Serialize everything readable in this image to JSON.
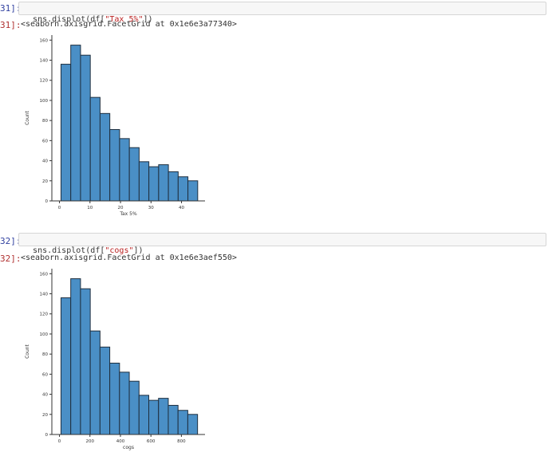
{
  "cells": [
    {
      "in_prompt": "31]:",
      "out_prompt": "31]:",
      "code_prefix": "sns.displot(df[",
      "code_str": "\"Tax 5%\"",
      "code_suffix": "])",
      "output": "<seaborn.axisgrid.FacetGrid at 0x1e6e3a77340>"
    },
    {
      "in_prompt": "32]:",
      "out_prompt": "32]:",
      "code_prefix": "sns.displot(df[",
      "code_str": "\"cogs\"",
      "code_suffix": "])",
      "output": "<seaborn.axisgrid.FacetGrid at 0x1e6e3aef550>"
    }
  ],
  "chart_data": [
    {
      "type": "bar",
      "xlabel": "Tax 5%",
      "ylabel": "Count",
      "bin_edges": [
        0.5,
        3.7,
        6.9,
        10.1,
        13.3,
        16.5,
        19.7,
        22.9,
        26.1,
        29.3,
        32.5,
        35.7,
        38.9,
        42.1,
        45.3
      ],
      "values": [
        136,
        155,
        145,
        103,
        87,
        71,
        62,
        53,
        39,
        34,
        36,
        29,
        24,
        20
      ],
      "xlim": [
        -2.5,
        47.7
      ],
      "ylim": [
        0,
        165
      ],
      "xticks": [
        0,
        10,
        20,
        30,
        40
      ],
      "yticks": [
        0,
        20,
        40,
        60,
        80,
        100,
        120,
        140,
        160
      ],
      "bar_color": "#4a8fc6",
      "edge_color": "#1f2f3f"
    },
    {
      "type": "bar",
      "xlabel": "cogs",
      "ylabel": "Count",
      "bin_edges": [
        10,
        74,
        138,
        202,
        266,
        330,
        394,
        458,
        522,
        586,
        650,
        714,
        778,
        842,
        906
      ],
      "values": [
        136,
        155,
        145,
        103,
        87,
        71,
        62,
        53,
        39,
        34,
        36,
        29,
        24,
        20
      ],
      "xlim": [
        -50,
        955
      ],
      "ylim": [
        0,
        165
      ],
      "xticks": [
        0,
        200,
        400,
        600,
        800
      ],
      "yticks": [
        0,
        20,
        40,
        60,
        80,
        100,
        120,
        140,
        160
      ],
      "bar_color": "#4a8fc6",
      "edge_color": "#1f2f3f"
    }
  ]
}
